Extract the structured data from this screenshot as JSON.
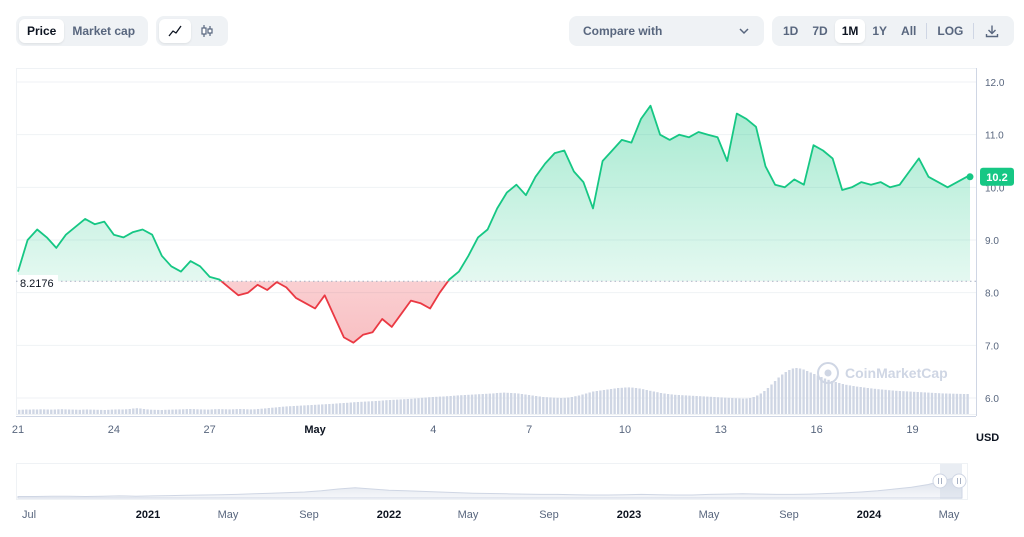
{
  "controls": {
    "type_toggle": [
      "Price",
      "Market cap"
    ],
    "type_active": "Price",
    "chart_toggle_icons": [
      "line-chart-icon",
      "candlestick-icon"
    ],
    "compare_label": "Compare with",
    "ranges": [
      "1D",
      "7D",
      "1M",
      "1Y",
      "All"
    ],
    "range_active": "1M",
    "log_label": "LOG",
    "download_icon": "download-icon"
  },
  "watermark": "CoinMarketCap",
  "colors": {
    "up": "#16c784",
    "down": "#ea3943",
    "volume": "#cfd6e4",
    "navigator": "#e9ecf1"
  },
  "chart_data": {
    "type": "area",
    "currency_label": "USD",
    "baseline_label": "8.2176",
    "last_value_label": "10.2",
    "y_ticks": [
      "12.0",
      "11.0",
      "10.0",
      "9.0",
      "8.0",
      "7.0",
      "6.0"
    ],
    "ylim": [
      5.75,
      12.3
    ],
    "baseline": 8.2176,
    "last_value": 10.2,
    "x_ticks": [
      {
        "label": "21",
        "bold": false,
        "t": 0
      },
      {
        "label": "24",
        "bold": false,
        "t": 3
      },
      {
        "label": "27",
        "bold": false,
        "t": 6
      },
      {
        "label": "May",
        "bold": true,
        "t": 9.3
      },
      {
        "label": "4",
        "bold": false,
        "t": 13
      },
      {
        "label": "7",
        "bold": false,
        "t": 16
      },
      {
        "label": "10",
        "bold": false,
        "t": 19
      },
      {
        "label": "13",
        "bold": false,
        "t": 22
      },
      {
        "label": "16",
        "bold": false,
        "t": 25
      },
      {
        "label": "19",
        "bold": false,
        "t": 28
      }
    ],
    "xlim": [
      0,
      29.8
    ],
    "series": [
      {
        "points": [
          [
            0,
            8.4
          ],
          [
            0.3,
            9.0
          ],
          [
            0.6,
            9.2
          ],
          [
            0.9,
            9.05
          ],
          [
            1.2,
            8.85
          ],
          [
            1.5,
            9.1
          ],
          [
            1.8,
            9.25
          ],
          [
            2.1,
            9.4
          ],
          [
            2.4,
            9.3
          ],
          [
            2.7,
            9.35
          ],
          [
            3.0,
            9.1
          ],
          [
            3.3,
            9.05
          ],
          [
            3.6,
            9.15
          ],
          [
            3.9,
            9.2
          ],
          [
            4.2,
            9.1
          ],
          [
            4.5,
            8.7
          ],
          [
            4.8,
            8.5
          ],
          [
            5.1,
            8.4
          ],
          [
            5.4,
            8.6
          ],
          [
            5.7,
            8.5
          ],
          [
            6.0,
            8.3
          ],
          [
            6.3,
            8.25
          ],
          [
            6.6,
            8.1
          ],
          [
            6.9,
            7.95
          ],
          [
            7.2,
            8.0
          ],
          [
            7.5,
            8.15
          ],
          [
            7.8,
            8.05
          ],
          [
            8.1,
            8.2
          ],
          [
            8.4,
            8.1
          ],
          [
            8.7,
            7.9
          ],
          [
            9.0,
            7.8
          ],
          [
            9.3,
            7.7
          ],
          [
            9.6,
            7.95
          ],
          [
            9.9,
            7.55
          ],
          [
            10.2,
            7.15
          ],
          [
            10.5,
            7.05
          ],
          [
            10.8,
            7.2
          ],
          [
            11.1,
            7.25
          ],
          [
            11.4,
            7.5
          ],
          [
            11.7,
            7.35
          ],
          [
            12.0,
            7.6
          ],
          [
            12.3,
            7.85
          ],
          [
            12.6,
            7.8
          ],
          [
            12.9,
            7.7
          ],
          [
            13.2,
            8.0
          ],
          [
            13.5,
            8.25
          ],
          [
            13.8,
            8.4
          ],
          [
            14.1,
            8.7
          ],
          [
            14.4,
            9.05
          ],
          [
            14.7,
            9.2
          ],
          [
            15.0,
            9.6
          ],
          [
            15.3,
            9.9
          ],
          [
            15.6,
            10.05
          ],
          [
            15.9,
            9.85
          ],
          [
            16.2,
            10.2
          ],
          [
            16.5,
            10.45
          ],
          [
            16.8,
            10.65
          ],
          [
            17.1,
            10.7
          ],
          [
            17.4,
            10.3
          ],
          [
            17.7,
            10.1
          ],
          [
            18.0,
            9.6
          ],
          [
            18.3,
            10.5
          ],
          [
            18.6,
            10.7
          ],
          [
            18.9,
            10.9
          ],
          [
            19.2,
            10.85
          ],
          [
            19.5,
            11.3
          ],
          [
            19.8,
            11.55
          ],
          [
            20.1,
            11.0
          ],
          [
            20.4,
            10.9
          ],
          [
            20.7,
            11.0
          ],
          [
            21.0,
            10.95
          ],
          [
            21.3,
            11.05
          ],
          [
            21.6,
            11.0
          ],
          [
            21.9,
            10.95
          ],
          [
            22.2,
            10.5
          ],
          [
            22.5,
            11.4
          ],
          [
            22.8,
            11.3
          ],
          [
            23.1,
            11.15
          ],
          [
            23.4,
            10.4
          ],
          [
            23.7,
            10.05
          ],
          [
            24.0,
            10.0
          ],
          [
            24.3,
            10.15
          ],
          [
            24.6,
            10.05
          ],
          [
            24.9,
            10.8
          ],
          [
            25.2,
            10.7
          ],
          [
            25.5,
            10.55
          ],
          [
            25.8,
            9.95
          ],
          [
            26.1,
            10.0
          ],
          [
            26.4,
            10.1
          ],
          [
            26.7,
            10.05
          ],
          [
            27.0,
            10.1
          ],
          [
            27.3,
            10.0
          ],
          [
            27.6,
            10.05
          ],
          [
            27.9,
            10.3
          ],
          [
            28.2,
            10.55
          ],
          [
            28.5,
            10.2
          ],
          [
            28.8,
            10.1
          ],
          [
            29.1,
            10.0
          ],
          [
            29.4,
            10.1
          ],
          [
            29.7,
            10.2
          ],
          [
            29.8,
            10.2
          ]
        ]
      }
    ],
    "volume": [
      0.42,
      0.43,
      0.45,
      0.44,
      0.46,
      0.45,
      0.47,
      0.46,
      0.45,
      0.44,
      0.45,
      0.47,
      0.48,
      0.46,
      0.45,
      0.44,
      0.43,
      0.42,
      0.44,
      0.45,
      0.44,
      0.43,
      0.42,
      0.41,
      0.4,
      0.42,
      0.44,
      0.45,
      0.46,
      0.45,
      0.47,
      0.5,
      0.55,
      0.58,
      0.55,
      0.5,
      0.46,
      0.43,
      0.42,
      0.41,
      0.4,
      0.42,
      0.43,
      0.44,
      0.45,
      0.46,
      0.47,
      0.49,
      0.5,
      0.49,
      0.47,
      0.46,
      0.45,
      0.44,
      0.46,
      0.48,
      0.49,
      0.48,
      0.47,
      0.46,
      0.47,
      0.49,
      0.5,
      0.49,
      0.47,
      0.46,
      0.47,
      0.5,
      0.53,
      0.56,
      0.6,
      0.63,
      0.66,
      0.7,
      0.73,
      0.76,
      0.78,
      0.8,
      0.82,
      0.84,
      0.86,
      0.88,
      0.9,
      0.92,
      0.94,
      0.96,
      0.98,
      1.0,
      1.02,
      1.05,
      1.08,
      1.1,
      1.12,
      1.15,
      1.18,
      1.2,
      1.22,
      1.24,
      1.26,
      1.28,
      1.3,
      1.32,
      1.35,
      1.38,
      1.4,
      1.42,
      1.44,
      1.46,
      1.48,
      1.5,
      1.52,
      1.55,
      1.58,
      1.62,
      1.65,
      1.68,
      1.7,
      1.72,
      1.74,
      1.75,
      1.78,
      1.8,
      1.83,
      1.86,
      1.88,
      1.9,
      1.92,
      1.94,
      1.96,
      1.98,
      2.0,
      2.02,
      2.04,
      2.06,
      2.1,
      2.12,
      2.14,
      2.12,
      2.1,
      2.08,
      2.05,
      2.0,
      1.95,
      1.9,
      1.85,
      1.8,
      1.75,
      1.7,
      1.68,
      1.66,
      1.64,
      1.62,
      1.6,
      1.62,
      1.65,
      1.7,
      1.78,
      1.85,
      1.95,
      2.05,
      2.15,
      2.25,
      2.3,
      2.35,
      2.4,
      2.45,
      2.5,
      2.55,
      2.6,
      2.62,
      2.65,
      2.66,
      2.64,
      2.6,
      2.55,
      2.48,
      2.4,
      2.32,
      2.25,
      2.18,
      2.1,
      2.05,
      2.0,
      1.96,
      1.92,
      1.9,
      1.88,
      1.86,
      1.84,
      1.82,
      1.8,
      1.78,
      1.76,
      1.74,
      1.72,
      1.7,
      1.68,
      1.66,
      1.64,
      1.62,
      1.6,
      1.58,
      1.56,
      1.54,
      1.55,
      1.6,
      1.7,
      1.85,
      2.05,
      2.3,
      2.6,
      2.95,
      3.3,
      3.65,
      3.95,
      4.2,
      4.4,
      4.55,
      4.6,
      4.55,
      4.45,
      4.3,
      4.15,
      4.0,
      3.85,
      3.7,
      3.55,
      3.42,
      3.3,
      3.2,
      3.1,
      3.0,
      2.92,
      2.86,
      2.8,
      2.74,
      2.7,
      2.65,
      2.6,
      2.56,
      2.52,
      2.48,
      2.45,
      2.42,
      2.38,
      2.35,
      2.32,
      2.3,
      2.28,
      2.26,
      2.24,
      2.22,
      2.2,
      2.18,
      2.16,
      2.14,
      2.12,
      2.1,
      2.08,
      2.06,
      2.05,
      2.04,
      2.03,
      2.02,
      2.01,
      2.0,
      2.0
    ],
    "navigator_labels": [
      {
        "label": "Jul",
        "bold": false,
        "x": 29
      },
      {
        "label": "2021",
        "bold": true,
        "x": 148
      },
      {
        "label": "May",
        "bold": false,
        "x": 228
      },
      {
        "label": "Sep",
        "bold": false,
        "x": 309
      },
      {
        "label": "2022",
        "bold": true,
        "x": 389
      },
      {
        "label": "May",
        "bold": false,
        "x": 468
      },
      {
        "label": "Sep",
        "bold": false,
        "x": 549
      },
      {
        "label": "2023",
        "bold": true,
        "x": 629
      },
      {
        "label": "May",
        "bold": false,
        "x": 709
      },
      {
        "label": "Sep",
        "bold": false,
        "x": 789
      },
      {
        "label": "2024",
        "bold": true,
        "x": 869
      },
      {
        "label": "May",
        "bold": false,
        "x": 949
      }
    ],
    "navigator_values": [
      0.05,
      0.05,
      0.06,
      0.06,
      0.05,
      0.06,
      0.07,
      0.06,
      0.07,
      0.08,
      0.09,
      0.1,
      0.11,
      0.12,
      0.14,
      0.16,
      0.18,
      0.2,
      0.24,
      0.3,
      0.34,
      0.3,
      0.26,
      0.24,
      0.22,
      0.2,
      0.18,
      0.16,
      0.15,
      0.14,
      0.13,
      0.12,
      0.12,
      0.11,
      0.1,
      0.1,
      0.11,
      0.12,
      0.11,
      0.1,
      0.1,
      0.12,
      0.13,
      0.14,
      0.13,
      0.12,
      0.12,
      0.13,
      0.15,
      0.17,
      0.2,
      0.24,
      0.3,
      0.36,
      0.45,
      0.6,
      0.72
    ]
  }
}
